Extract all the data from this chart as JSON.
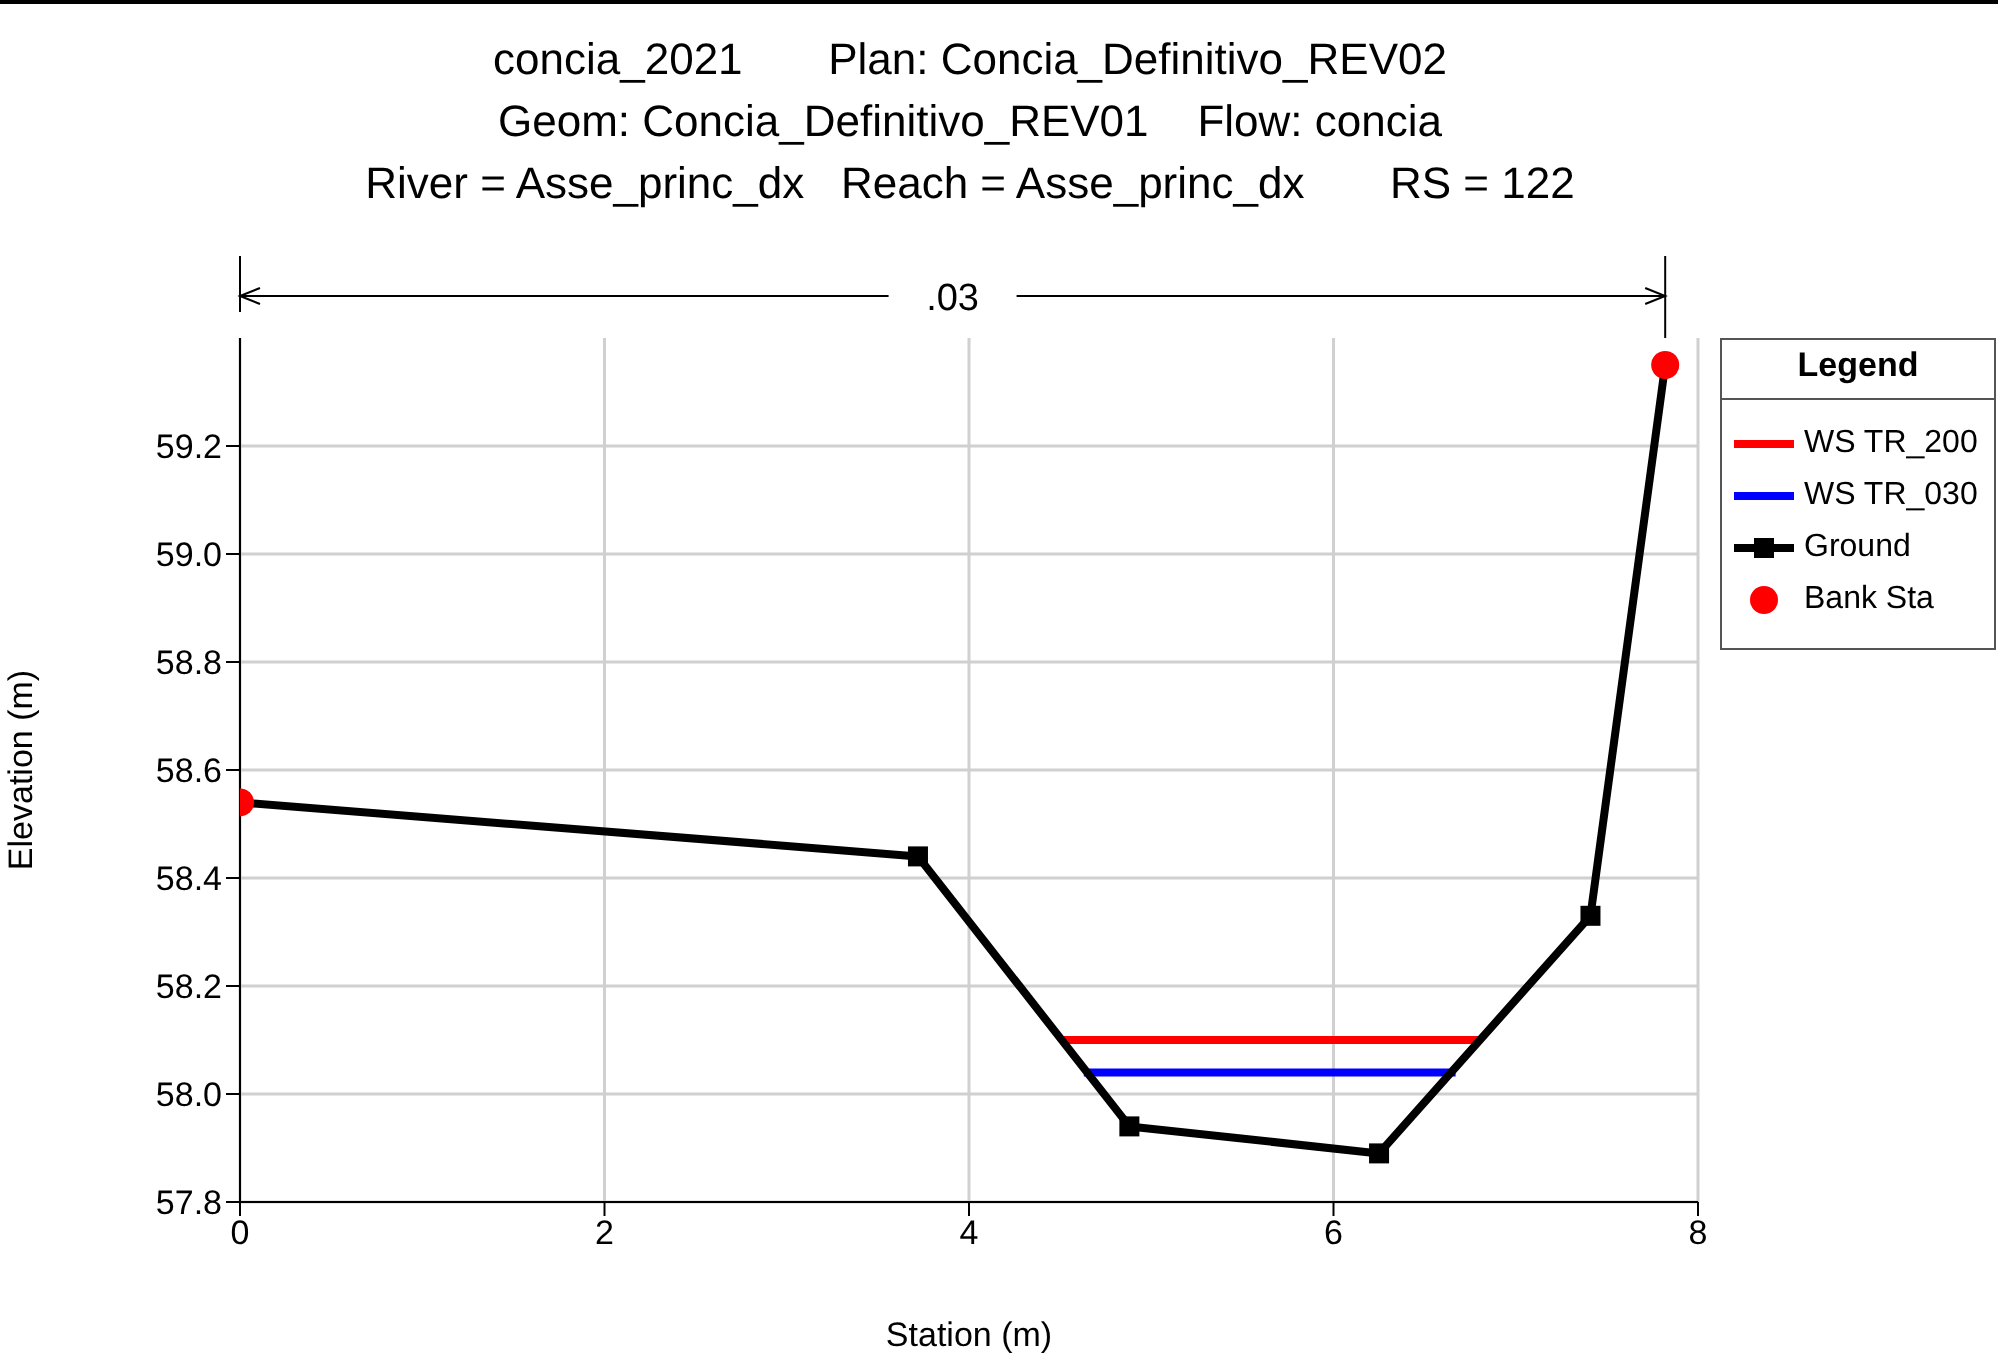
{
  "chart_data": {
    "type": "line",
    "title": "concia_2021       Plan: Concia_Definitivo_REV02",
    "subtitle": "Geom: Concia_Definitivo_REV01    Flow: concia\nRiver = Asse_princ_dx   Reach = Asse_princ_dx       RS = 122",
    "xlabel": "Station (m)",
    "ylabel": "Elevation (m)",
    "legend_title": "Legend",
    "annotations": [
      ".03"
    ],
    "xlim": [
      0,
      8
    ],
    "xticks": [
      0,
      2,
      4,
      6,
      8
    ],
    "ylim": [
      57.8,
      59.4
    ],
    "yticks": [
      57.8,
      {
        "value": 58,
        "label": "58.0"
      },
      58.2,
      58.4,
      58.6,
      58.8,
      {
        "value": 59,
        "label": "59.0"
      },
      59.2
    ],
    "grid": true,
    "legend": "top right",
    "line_style": "solid",
    "series": [
      {
        "name": "WS TR_200",
        "color": "#ff0000",
        "marker": "none",
        "x": [
          4.52,
          6.8
        ],
        "values": [
          58.1,
          58.1
        ]
      },
      {
        "name": "WS TR_030",
        "color": "#0000ff",
        "marker": "none",
        "x": [
          4.63,
          6.67
        ],
        "values": [
          58.04,
          58.04
        ]
      },
      {
        "name": "Ground",
        "color": "#000000",
        "marker": "square",
        "x": [
          0,
          3.72,
          4.88,
          6.25,
          7.41,
          7.82
        ],
        "values": [
          58.54,
          58.44,
          57.94,
          57.89,
          58.33,
          59.35
        ]
      },
      {
        "name": "Bank Sta",
        "type": "scatter",
        "color": "#ff0000",
        "marker": "circle",
        "x": [
          0,
          7.82
        ],
        "values": [
          58.54,
          59.35
        ]
      }
    ]
  }
}
